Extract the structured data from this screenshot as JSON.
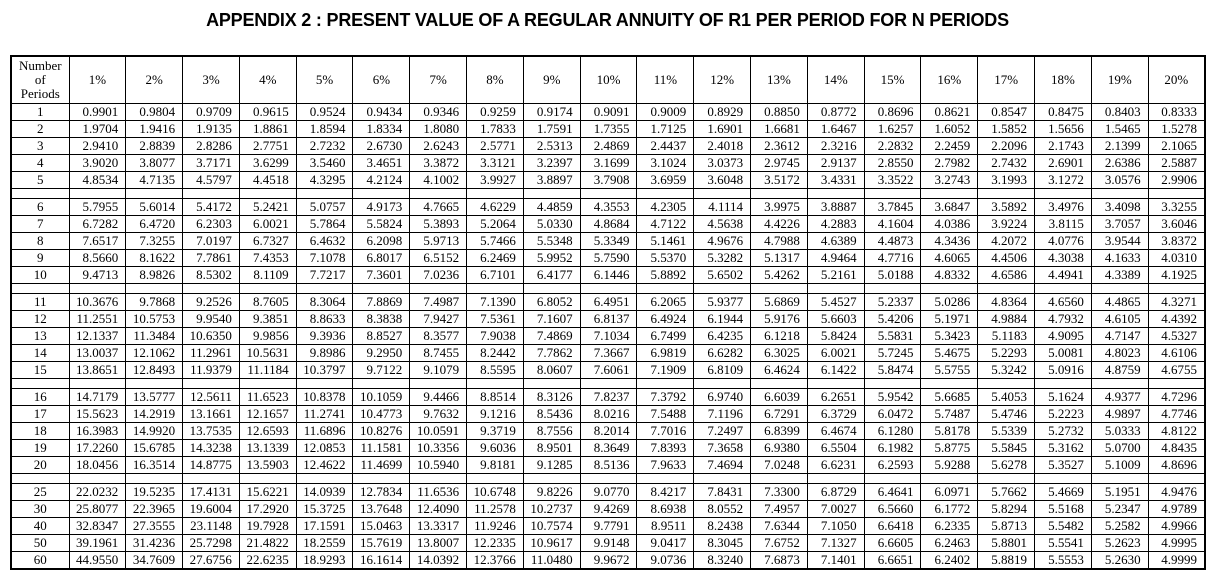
{
  "title": "APPENDIX 2 : PRESENT VALUE OF A REGULAR ANNUITY OF R1 PER PERIOD FOR N PERIODS",
  "header": {
    "period_label_lines": [
      "Number",
      "of",
      "Periods"
    ],
    "rates": [
      "1%",
      "2%",
      "3%",
      "4%",
      "5%",
      "6%",
      "7%",
      "8%",
      "9%",
      "10%",
      "11%",
      "12%",
      "13%",
      "14%",
      "15%",
      "16%",
      "17%",
      "18%",
      "19%",
      "20%"
    ]
  },
  "groups": [
    {
      "rows": [
        {
          "period": "1",
          "values": [
            "0.9901",
            "0.9804",
            "0.9709",
            "0.9615",
            "0.9524",
            "0.9434",
            "0.9346",
            "0.9259",
            "0.9174",
            "0.9091",
            "0.9009",
            "0.8929",
            "0.8850",
            "0.8772",
            "0.8696",
            "0.8621",
            "0.8547",
            "0.8475",
            "0.8403",
            "0.8333"
          ]
        },
        {
          "period": "2",
          "values": [
            "1.9704",
            "1.9416",
            "1.9135",
            "1.8861",
            "1.8594",
            "1.8334",
            "1.8080",
            "1.7833",
            "1.7591",
            "1.7355",
            "1.7125",
            "1.6901",
            "1.6681",
            "1.6467",
            "1.6257",
            "1.6052",
            "1.5852",
            "1.5656",
            "1.5465",
            "1.5278"
          ]
        },
        {
          "period": "3",
          "values": [
            "2.9410",
            "2.8839",
            "2.8286",
            "2.7751",
            "2.7232",
            "2.6730",
            "2.6243",
            "2.5771",
            "2.5313",
            "2.4869",
            "2.4437",
            "2.4018",
            "2.3612",
            "2.3216",
            "2.2832",
            "2.2459",
            "2.2096",
            "2.1743",
            "2.1399",
            "2.1065"
          ]
        },
        {
          "period": "4",
          "values": [
            "3.9020",
            "3.8077",
            "3.7171",
            "3.6299",
            "3.5460",
            "3.4651",
            "3.3872",
            "3.3121",
            "3.2397",
            "3.1699",
            "3.1024",
            "3.0373",
            "2.9745",
            "2.9137",
            "2.8550",
            "2.7982",
            "2.7432",
            "2.6901",
            "2.6386",
            "2.5887"
          ]
        },
        {
          "period": "5",
          "values": [
            "4.8534",
            "4.7135",
            "4.5797",
            "4.4518",
            "4.3295",
            "4.2124",
            "4.1002",
            "3.9927",
            "3.8897",
            "3.7908",
            "3.6959",
            "3.6048",
            "3.5172",
            "3.4331",
            "3.3522",
            "3.2743",
            "3.1993",
            "3.1272",
            "3.0576",
            "2.9906"
          ]
        }
      ]
    },
    {
      "rows": [
        {
          "period": "6",
          "values": [
            "5.7955",
            "5.6014",
            "5.4172",
            "5.2421",
            "5.0757",
            "4.9173",
            "4.7665",
            "4.6229",
            "4.4859",
            "4.3553",
            "4.2305",
            "4.1114",
            "3.9975",
            "3.8887",
            "3.7845",
            "3.6847",
            "3.5892",
            "3.4976",
            "3.4098",
            "3.3255"
          ]
        },
        {
          "period": "7",
          "values": [
            "6.7282",
            "6.4720",
            "6.2303",
            "6.0021",
            "5.7864",
            "5.5824",
            "5.3893",
            "5.2064",
            "5.0330",
            "4.8684",
            "4.7122",
            "4.5638",
            "4.4226",
            "4.2883",
            "4.1604",
            "4.0386",
            "3.9224",
            "3.8115",
            "3.7057",
            "3.6046"
          ]
        },
        {
          "period": "8",
          "values": [
            "7.6517",
            "7.3255",
            "7.0197",
            "6.7327",
            "6.4632",
            "6.2098",
            "5.9713",
            "5.7466",
            "5.5348",
            "5.3349",
            "5.1461",
            "4.9676",
            "4.7988",
            "4.6389",
            "4.4873",
            "4.3436",
            "4.2072",
            "4.0776",
            "3.9544",
            "3.8372"
          ]
        },
        {
          "period": "9",
          "values": [
            "8.5660",
            "8.1622",
            "7.7861",
            "7.4353",
            "7.1078",
            "6.8017",
            "6.5152",
            "6.2469",
            "5.9952",
            "5.7590",
            "5.5370",
            "5.3282",
            "5.1317",
            "4.9464",
            "4.7716",
            "4.6065",
            "4.4506",
            "4.3038",
            "4.1633",
            "4.0310"
          ]
        },
        {
          "period": "10",
          "values": [
            "9.4713",
            "8.9826",
            "8.5302",
            "8.1109",
            "7.7217",
            "7.3601",
            "7.0236",
            "6.7101",
            "6.4177",
            "6.1446",
            "5.8892",
            "5.6502",
            "5.4262",
            "5.2161",
            "5.0188",
            "4.8332",
            "4.6586",
            "4.4941",
            "4.3389",
            "4.1925"
          ]
        }
      ]
    },
    {
      "rows": [
        {
          "period": "11",
          "values": [
            "10.3676",
            "9.7868",
            "9.2526",
            "8.7605",
            "8.3064",
            "7.8869",
            "7.4987",
            "7.1390",
            "6.8052",
            "6.4951",
            "6.2065",
            "5.9377",
            "5.6869",
            "5.4527",
            "5.2337",
            "5.0286",
            "4.8364",
            "4.6560",
            "4.4865",
            "4.3271"
          ]
        },
        {
          "period": "12",
          "values": [
            "11.2551",
            "10.5753",
            "9.9540",
            "9.3851",
            "8.8633",
            "8.3838",
            "7.9427",
            "7.5361",
            "7.1607",
            "6.8137",
            "6.4924",
            "6.1944",
            "5.9176",
            "5.6603",
            "5.4206",
            "5.1971",
            "4.9884",
            "4.7932",
            "4.6105",
            "4.4392"
          ]
        },
        {
          "period": "13",
          "values": [
            "12.1337",
            "11.3484",
            "10.6350",
            "9.9856",
            "9.3936",
            "8.8527",
            "8.3577",
            "7.9038",
            "7.4869",
            "7.1034",
            "6.7499",
            "6.4235",
            "6.1218",
            "5.8424",
            "5.5831",
            "5.3423",
            "5.1183",
            "4.9095",
            "4.7147",
            "4.5327"
          ]
        },
        {
          "period": "14",
          "values": [
            "13.0037",
            "12.1062",
            "11.2961",
            "10.5631",
            "9.8986",
            "9.2950",
            "8.7455",
            "8.2442",
            "7.7862",
            "7.3667",
            "6.9819",
            "6.6282",
            "6.3025",
            "6.0021",
            "5.7245",
            "5.4675",
            "5.2293",
            "5.0081",
            "4.8023",
            "4.6106"
          ]
        },
        {
          "period": "15",
          "values": [
            "13.8651",
            "12.8493",
            "11.9379",
            "11.1184",
            "10.3797",
            "9.7122",
            "9.1079",
            "8.5595",
            "8.0607",
            "7.6061",
            "7.1909",
            "6.8109",
            "6.4624",
            "6.1422",
            "5.8474",
            "5.5755",
            "5.3242",
            "5.0916",
            "4.8759",
            "4.6755"
          ]
        }
      ]
    },
    {
      "rows": [
        {
          "period": "16",
          "values": [
            "14.7179",
            "13.5777",
            "12.5611",
            "11.6523",
            "10.8378",
            "10.1059",
            "9.4466",
            "8.8514",
            "8.3126",
            "7.8237",
            "7.3792",
            "6.9740",
            "6.6039",
            "6.2651",
            "5.9542",
            "5.6685",
            "5.4053",
            "5.1624",
            "4.9377",
            "4.7296"
          ]
        },
        {
          "period": "17",
          "values": [
            "15.5623",
            "14.2919",
            "13.1661",
            "12.1657",
            "11.2741",
            "10.4773",
            "9.7632",
            "9.1216",
            "8.5436",
            "8.0216",
            "7.5488",
            "7.1196",
            "6.7291",
            "6.3729",
            "6.0472",
            "5.7487",
            "5.4746",
            "5.2223",
            "4.9897",
            "4.7746"
          ]
        },
        {
          "period": "18",
          "values": [
            "16.3983",
            "14.9920",
            "13.7535",
            "12.6593",
            "11.6896",
            "10.8276",
            "10.0591",
            "9.3719",
            "8.7556",
            "8.2014",
            "7.7016",
            "7.2497",
            "6.8399",
            "6.4674",
            "6.1280",
            "5.8178",
            "5.5339",
            "5.2732",
            "5.0333",
            "4.8122"
          ]
        },
        {
          "period": "19",
          "values": [
            "17.2260",
            "15.6785",
            "14.3238",
            "13.1339",
            "12.0853",
            "11.1581",
            "10.3356",
            "9.6036",
            "8.9501",
            "8.3649",
            "7.8393",
            "7.3658",
            "6.9380",
            "6.5504",
            "6.1982",
            "5.8775",
            "5.5845",
            "5.3162",
            "5.0700",
            "4.8435"
          ]
        },
        {
          "period": "20",
          "values": [
            "18.0456",
            "16.3514",
            "14.8775",
            "13.5903",
            "12.4622",
            "11.4699",
            "10.5940",
            "9.8181",
            "9.1285",
            "8.5136",
            "7.9633",
            "7.4694",
            "7.0248",
            "6.6231",
            "6.2593",
            "5.9288",
            "5.6278",
            "5.3527",
            "5.1009",
            "4.8696"
          ]
        }
      ]
    },
    {
      "rows": [
        {
          "period": "25",
          "values": [
            "22.0232",
            "19.5235",
            "17.4131",
            "15.6221",
            "14.0939",
            "12.7834",
            "11.6536",
            "10.6748",
            "9.8226",
            "9.0770",
            "8.4217",
            "7.8431",
            "7.3300",
            "6.8729",
            "6.4641",
            "6.0971",
            "5.7662",
            "5.4669",
            "5.1951",
            "4.9476"
          ]
        },
        {
          "period": "30",
          "values": [
            "25.8077",
            "22.3965",
            "19.6004",
            "17.2920",
            "15.3725",
            "13.7648",
            "12.4090",
            "11.2578",
            "10.2737",
            "9.4269",
            "8.6938",
            "8.0552",
            "7.4957",
            "7.0027",
            "6.5660",
            "6.1772",
            "5.8294",
            "5.5168",
            "5.2347",
            "4.9789"
          ]
        },
        {
          "period": "40",
          "values": [
            "32.8347",
            "27.3555",
            "23.1148",
            "19.7928",
            "17.1591",
            "15.0463",
            "13.3317",
            "11.9246",
            "10.7574",
            "9.7791",
            "8.9511",
            "8.2438",
            "7.6344",
            "7.1050",
            "6.6418",
            "6.2335",
            "5.8713",
            "5.5482",
            "5.2582",
            "4.9966"
          ]
        },
        {
          "period": "50",
          "values": [
            "39.1961",
            "31.4236",
            "25.7298",
            "21.4822",
            "18.2559",
            "15.7619",
            "13.8007",
            "12.2335",
            "10.9617",
            "9.9148",
            "9.0417",
            "8.3045",
            "7.6752",
            "7.1327",
            "6.6605",
            "6.2463",
            "5.8801",
            "5.5541",
            "5.2623",
            "4.9995"
          ]
        },
        {
          "period": "60",
          "values": [
            "44.9550",
            "34.7609",
            "27.6756",
            "22.6235",
            "18.9293",
            "16.1614",
            "14.0392",
            "12.3766",
            "11.0480",
            "9.9672",
            "9.0736",
            "8.3240",
            "7.6873",
            "7.1401",
            "6.6651",
            "6.2402",
            "5.8819",
            "5.5553",
            "5.2630",
            "4.9999"
          ]
        }
      ]
    }
  ]
}
